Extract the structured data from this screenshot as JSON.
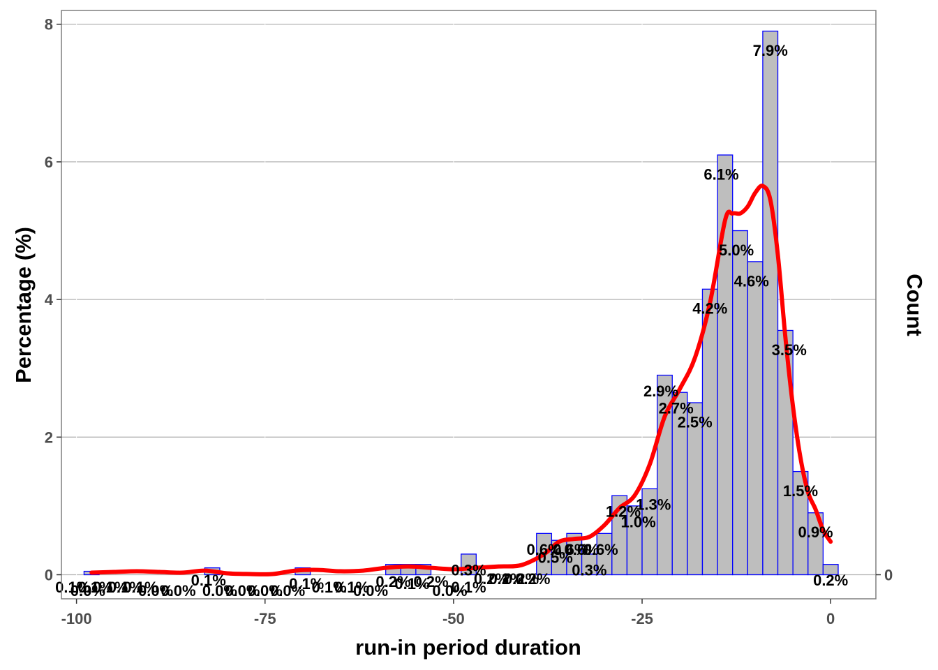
{
  "chart_data": {
    "type": "bar",
    "xlabel": "run-in period duration",
    "ylabel": "Percentage (%)",
    "ylabel_right": "Count",
    "xlim": [
      -102,
      6
    ],
    "ylim": [
      -0.35,
      8.2
    ],
    "x_ticks": [
      -100,
      -75,
      -50,
      -25,
      0
    ],
    "x_tick_labels": [
      "-100",
      "-75",
      "-50",
      "-25",
      "0"
    ],
    "y_ticks": [
      0,
      2,
      4,
      6,
      8
    ],
    "y_tick_labels": [
      "0",
      "2",
      "4",
      "6",
      "8"
    ],
    "y_right_ticks": [
      0
    ],
    "y_right_tick_labels": [
      "0"
    ],
    "grid": true,
    "bin_width": 2,
    "bars": [
      {
        "x": -98,
        "value": 0.05
      },
      {
        "x": -82,
        "value": 0.1
      },
      {
        "x": -70,
        "value": 0.1
      },
      {
        "x": -58,
        "value": 0.15
      },
      {
        "x": -56,
        "value": 0.15
      },
      {
        "x": -54,
        "value": 0.15
      },
      {
        "x": -48,
        "value": 0.3
      },
      {
        "x": -38,
        "value": 0.6
      },
      {
        "x": -36,
        "value": 0.5
      },
      {
        "x": -34,
        "value": 0.6
      },
      {
        "x": -32,
        "value": 0.3
      },
      {
        "x": -30,
        "value": 0.6
      },
      {
        "x": -28,
        "value": 1.15
      },
      {
        "x": -26,
        "value": 1.0
      },
      {
        "x": -24,
        "value": 1.25
      },
      {
        "x": -22,
        "value": 2.9
      },
      {
        "x": -20,
        "value": 2.65
      },
      {
        "x": -18,
        "value": 2.5
      },
      {
        "x": -16,
        "value": 4.15
      },
      {
        "x": -14,
        "value": 6.1
      },
      {
        "x": -12,
        "value": 5.0
      },
      {
        "x": -10,
        "value": 4.55
      },
      {
        "x": -8,
        "value": 7.9
      },
      {
        "x": -6,
        "value": 3.55
      },
      {
        "x": -4,
        "value": 1.5
      },
      {
        "x": -2,
        "value": 0.9
      },
      {
        "x": 0,
        "value": 0.15
      }
    ],
    "labels": [
      {
        "x": -100.5,
        "y": -0.2,
        "text": "0.1%"
      },
      {
        "x": -98.5,
        "y": -0.25,
        "text": "0.0%"
      },
      {
        "x": -97.5,
        "y": -0.2,
        "text": "0.1%"
      },
      {
        "x": -95.5,
        "y": -0.2,
        "text": "0.1%"
      },
      {
        "x": -93.5,
        "y": -0.2,
        "text": "0.1%"
      },
      {
        "x": -91.5,
        "y": -0.2,
        "text": "0.1%"
      },
      {
        "x": -89.5,
        "y": -0.25,
        "text": "0.0%"
      },
      {
        "x": -86.5,
        "y": -0.25,
        "text": "0.0%"
      },
      {
        "x": -82.5,
        "y": -0.1,
        "text": "0.1%"
      },
      {
        "x": -81,
        "y": -0.25,
        "text": "0.0%"
      },
      {
        "x": -78,
        "y": -0.25,
        "text": "0.0%"
      },
      {
        "x": -75,
        "y": -0.25,
        "text": "0.0%"
      },
      {
        "x": -72,
        "y": -0.25,
        "text": "0.0%"
      },
      {
        "x": -69.5,
        "y": -0.15,
        "text": "0.1%"
      },
      {
        "x": -66.5,
        "y": -0.2,
        "text": "0.1%"
      },
      {
        "x": -63.5,
        "y": -0.2,
        "text": "0.1%"
      },
      {
        "x": -61,
        "y": -0.25,
        "text": "0.0%"
      },
      {
        "x": -58,
        "y": -0.12,
        "text": "0.2%"
      },
      {
        "x": -55.5,
        "y": -0.15,
        "text": "0.1%"
      },
      {
        "x": -53,
        "y": -0.12,
        "text": "0.2%"
      },
      {
        "x": -50.5,
        "y": -0.25,
        "text": "0.0%"
      },
      {
        "x": -48,
        "y": 0.05,
        "text": "0.3%"
      },
      {
        "x": -48,
        "y": -0.2,
        "text": "0.1%"
      },
      {
        "x": -45,
        "y": -0.08,
        "text": "0.2%"
      },
      {
        "x": -43,
        "y": -0.08,
        "text": "0.2%"
      },
      {
        "x": -41,
        "y": -0.08,
        "text": "0.2%"
      },
      {
        "x": -39.5,
        "y": -0.08,
        "text": "0.2%"
      },
      {
        "x": -38,
        "y": 0.35,
        "text": "0.6%"
      },
      {
        "x": -36.5,
        "y": 0.23,
        "text": "0.5%"
      },
      {
        "x": -34.5,
        "y": 0.35,
        "text": "0.6%"
      },
      {
        "x": -33,
        "y": 0.35,
        "text": "0.6%"
      },
      {
        "x": -32,
        "y": 0.05,
        "text": "0.3%"
      },
      {
        "x": -30.5,
        "y": 0.35,
        "text": "0.6%"
      },
      {
        "x": -27.5,
        "y": 0.9,
        "text": "1.2%"
      },
      {
        "x": -25.5,
        "y": 0.75,
        "text": "1.0%"
      },
      {
        "x": -23.5,
        "y": 1.0,
        "text": "1.3%"
      },
      {
        "x": -22.5,
        "y": 2.65,
        "text": "2.9%"
      },
      {
        "x": -20.5,
        "y": 2.4,
        "text": "2.7%"
      },
      {
        "x": -18,
        "y": 2.2,
        "text": "2.5%"
      },
      {
        "x": -16,
        "y": 3.85,
        "text": "4.2%"
      },
      {
        "x": -14.5,
        "y": 5.8,
        "text": "6.1%"
      },
      {
        "x": -12.5,
        "y": 4.7,
        "text": "5.0%"
      },
      {
        "x": -10.5,
        "y": 4.25,
        "text": "4.6%"
      },
      {
        "x": -8,
        "y": 7.6,
        "text": "7.9%"
      },
      {
        "x": -5.5,
        "y": 3.25,
        "text": "3.5%"
      },
      {
        "x": -4,
        "y": 1.2,
        "text": "1.5%"
      },
      {
        "x": -2,
        "y": 0.6,
        "text": "0.9%"
      },
      {
        "x": 0,
        "y": -0.1,
        "text": "0.2%"
      }
    ],
    "density_curve": {
      "color": "#ff0000",
      "x": [
        -98,
        -95,
        -92,
        -89,
        -86,
        -83,
        -80,
        -77,
        -74,
        -71,
        -68,
        -65,
        -62,
        -59,
        -56,
        -53,
        -50,
        -47,
        -44,
        -41,
        -38,
        -36,
        -34,
        -32,
        -30,
        -28,
        -26,
        -24,
        -22,
        -20,
        -18,
        -16,
        -14,
        -13,
        -12,
        -11,
        -10,
        -9,
        -8,
        -7,
        -6,
        -5,
        -4,
        -3,
        -2,
        -1,
        0
      ],
      "y": [
        0.03,
        0.04,
        0.05,
        0.04,
        0.03,
        0.06,
        0.02,
        0.01,
        0.01,
        0.06,
        0.07,
        0.05,
        0.06,
        0.1,
        0.12,
        0.1,
        0.08,
        0.1,
        0.12,
        0.14,
        0.3,
        0.48,
        0.52,
        0.55,
        0.72,
        0.97,
        1.15,
        1.6,
        2.3,
        2.7,
        3.15,
        3.95,
        5.15,
        5.25,
        5.25,
        5.35,
        5.55,
        5.65,
        5.45,
        4.65,
        3.45,
        2.45,
        1.7,
        1.2,
        0.95,
        0.65,
        0.48
      ]
    },
    "bar_fill": "#bebebe",
    "bar_stroke": "#0000ff"
  }
}
